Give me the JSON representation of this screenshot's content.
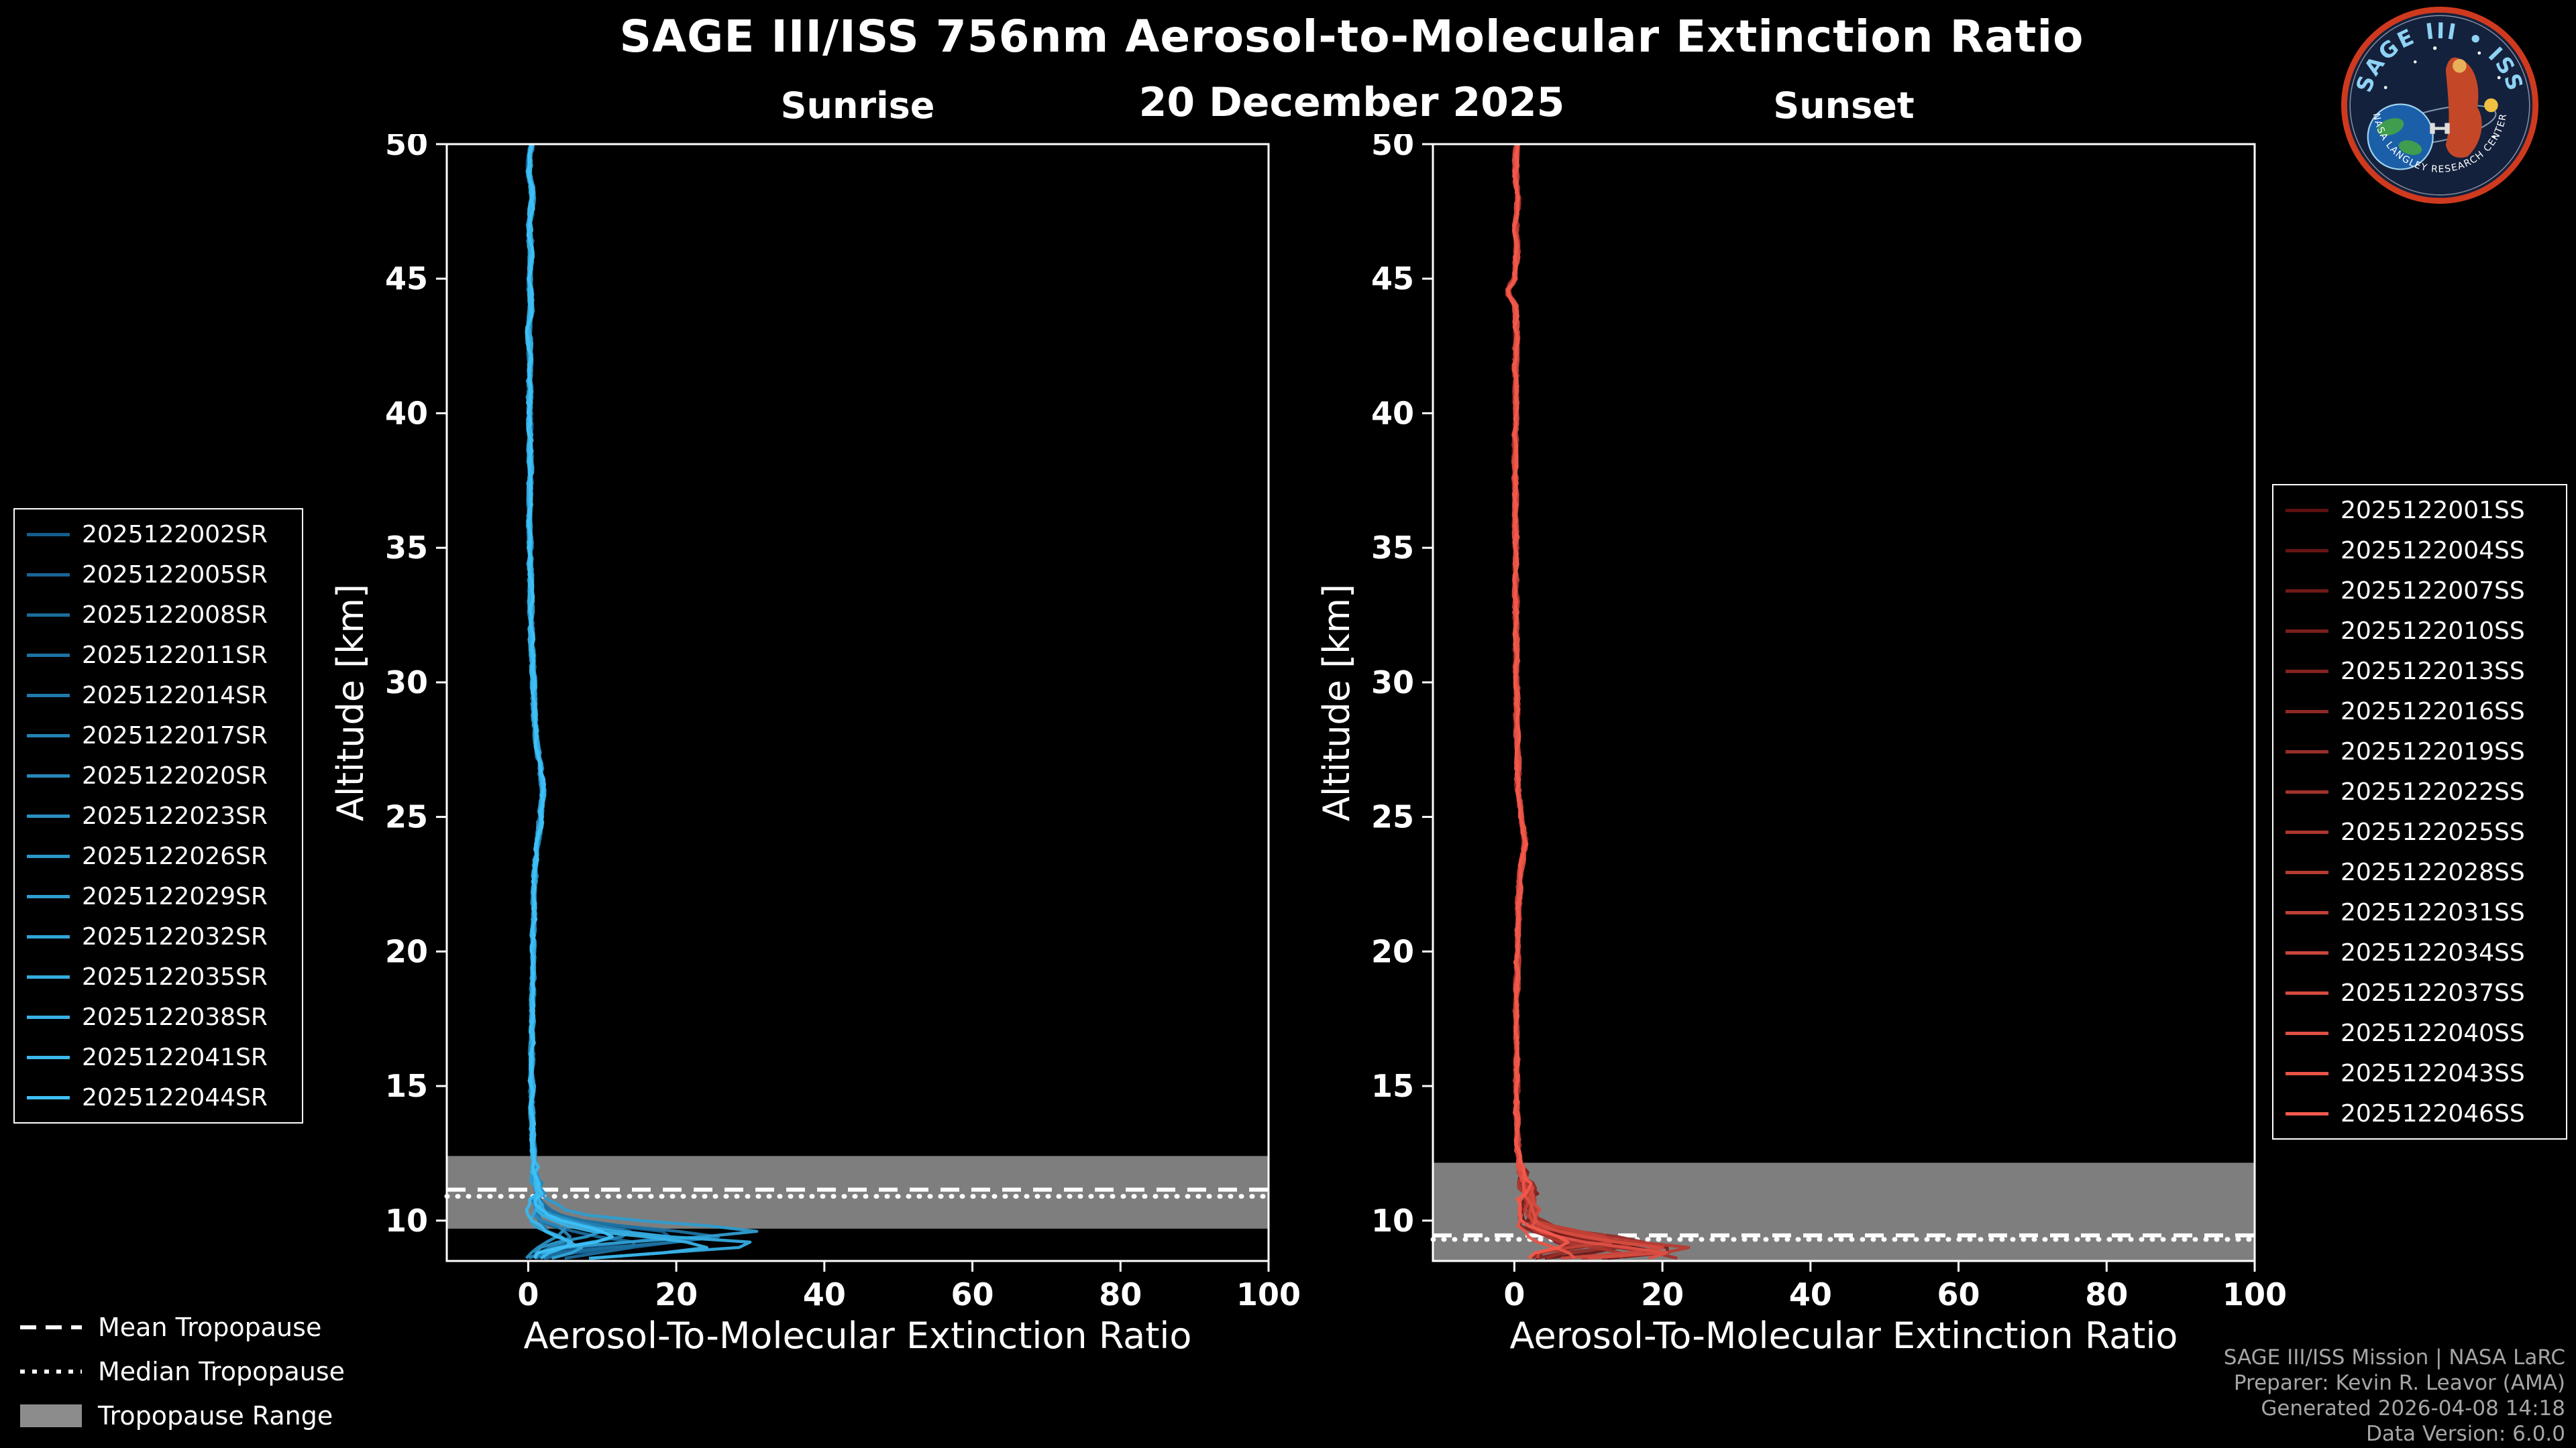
{
  "logo": {
    "title": "SAGE III • ISS",
    "arc_text": "NASA LANGLEY RESEARCH CENTER"
  },
  "footer": {
    "lines": [
      "SAGE III/ISS Mission | NASA LaRC",
      "Preparer: Kevin R. Leavor (AMA)",
      "Generated 2026-04-08 14:18",
      "Data Version: 6.0.0"
    ]
  },
  "chart_data": {
    "type": "line",
    "title": "SAGE III/ISS 756nm Aerosol-to-Molecular Extinction Ratio",
    "subtitle": "20 December 2025",
    "tropopause_legend": [
      {
        "style": "dashed",
        "label": "Mean Tropopause"
      },
      {
        "style": "dotted",
        "label": "Median Tropopause"
      },
      {
        "style": "band",
        "label": "Tropopause Range"
      }
    ],
    "band_color": "#8c8c8c",
    "panels": [
      {
        "title": "Sunrise",
        "xlabel": "Aerosol-To-Molecular Extinction Ratio",
        "ylabel": "Altitude [km]",
        "xlim": [
          -11,
          100
        ],
        "ylim": [
          8.5,
          50
        ],
        "xticks": [
          0,
          20,
          40,
          60,
          80,
          100
        ],
        "yticks": [
          10,
          15,
          20,
          25,
          30,
          35,
          40,
          45,
          50
        ],
        "tropopause": {
          "mean_km": 11.15,
          "median_km": 10.9,
          "range_km": [
            9.7,
            12.4
          ]
        },
        "series": [
          {
            "label": "2025122002SR",
            "color": "#155d8d"
          },
          {
            "label": "2025122005SR",
            "color": "#186494"
          },
          {
            "label": "2025122008SR",
            "color": "#1b6b9c"
          },
          {
            "label": "2025122011SR",
            "color": "#1e72a3"
          },
          {
            "label": "2025122014SR",
            "color": "#2179ab"
          },
          {
            "label": "2025122017SR",
            "color": "#2480b2"
          },
          {
            "label": "2025122020SR",
            "color": "#2787ba"
          },
          {
            "label": "2025122023SR",
            "color": "#2a8fc1"
          },
          {
            "label": "2025122026SR",
            "color": "#2c96c8"
          },
          {
            "label": "2025122029SR",
            "color": "#2f9dd0"
          },
          {
            "label": "2025122032SR",
            "color": "#32a4d7"
          },
          {
            "label": "2025122035SR",
            "color": "#35abdf"
          },
          {
            "label": "2025122038SR",
            "color": "#38b2e6"
          },
          {
            "label": "2025122041SR",
            "color": "#3bb9ee"
          },
          {
            "label": "2025122044SR",
            "color": "#3ec0f5"
          }
        ],
        "base_profile": [
          [
            50,
            0.5
          ],
          [
            49,
            0.1
          ],
          [
            48,
            0.6
          ],
          [
            47,
            0.1
          ],
          [
            46,
            0.4
          ],
          [
            45,
            0.2
          ],
          [
            44,
            0.4
          ],
          [
            43,
            0.1
          ],
          [
            42,
            0.3
          ],
          [
            41,
            0.2
          ],
          [
            40,
            0.2
          ],
          [
            38,
            0.3
          ],
          [
            36,
            0.2
          ],
          [
            34,
            0.3
          ],
          [
            32,
            0.4
          ],
          [
            30,
            0.7
          ],
          [
            28,
            1.0
          ],
          [
            27,
            1.6
          ],
          [
            26,
            2.0
          ],
          [
            25,
            1.7
          ],
          [
            24,
            1.2
          ],
          [
            23,
            0.9
          ],
          [
            22,
            0.8
          ],
          [
            20,
            0.7
          ],
          [
            18,
            0.6
          ],
          [
            16,
            0.5
          ],
          [
            14,
            0.5
          ],
          [
            13,
            0.6
          ],
          [
            12.3,
            0.8
          ],
          [
            11.5,
            1.0
          ],
          [
            11,
            1.3
          ],
          [
            10.6,
            1.8
          ],
          [
            10.2,
            3.5
          ],
          [
            9.9,
            8.0
          ],
          [
            9.6,
            18.0
          ],
          [
            9.35,
            27.0
          ],
          [
            9.1,
            20.0
          ],
          [
            8.9,
            9.0
          ],
          [
            8.7,
            4.0
          ],
          [
            8.5,
            2.0
          ]
        ]
      },
      {
        "title": "Sunset",
        "xlabel": "Aerosol-To-Molecular Extinction Ratio",
        "ylabel": "Altitude [km]",
        "xlim": [
          -11,
          100
        ],
        "ylim": [
          8.5,
          50
        ],
        "xticks": [
          0,
          20,
          40,
          60,
          80,
          100
        ],
        "yticks": [
          10,
          15,
          20,
          25,
          30,
          35,
          40,
          45,
          50
        ],
        "tropopause": {
          "mean_km": 9.45,
          "median_km": 9.3,
          "range_km": [
            8.5,
            12.15
          ]
        },
        "series": [
          {
            "label": "2025122001SS",
            "color": "#5c1010"
          },
          {
            "label": "2025122004SS",
            "color": "#661514"
          },
          {
            "label": "2025122007SS",
            "color": "#701a18"
          },
          {
            "label": "2025122010SS",
            "color": "#7a1f1c"
          },
          {
            "label": "2025122013SS",
            "color": "#842320"
          },
          {
            "label": "2025122016SS",
            "color": "#8e2824"
          },
          {
            "label": "2025122019SS",
            "color": "#982d28"
          },
          {
            "label": "2025122022SS",
            "color": "#a2322c"
          },
          {
            "label": "2025122025SS",
            "color": "#ac372f"
          },
          {
            "label": "2025122028SS",
            "color": "#b63c33"
          },
          {
            "label": "2025122031SS",
            "color": "#c04137"
          },
          {
            "label": "2025122034SS",
            "color": "#ca463b"
          },
          {
            "label": "2025122037SS",
            "color": "#d44b3f"
          },
          {
            "label": "2025122040SS",
            "color": "#de4f43"
          },
          {
            "label": "2025122043SS",
            "color": "#e85447"
          },
          {
            "label": "2025122046SS",
            "color": "#f2594b"
          }
        ],
        "base_profile": [
          [
            50,
            0.4
          ],
          [
            49,
            0.1
          ],
          [
            48,
            0.5
          ],
          [
            47,
            0.2
          ],
          [
            46,
            0.4
          ],
          [
            45,
            0.0
          ],
          [
            44.5,
            -0.9
          ],
          [
            44,
            0.1
          ],
          [
            43,
            0.3
          ],
          [
            42,
            0.2
          ],
          [
            40,
            0.2
          ],
          [
            38,
            0.1
          ],
          [
            36,
            0.2
          ],
          [
            34,
            0.2
          ],
          [
            32,
            0.2
          ],
          [
            30,
            0.3
          ],
          [
            28,
            0.4
          ],
          [
            26,
            0.5
          ],
          [
            24.5,
            1.2
          ],
          [
            24,
            1.5
          ],
          [
            23,
            0.8
          ],
          [
            22,
            0.6
          ],
          [
            20,
            0.4
          ],
          [
            18,
            0.3
          ],
          [
            16,
            0.3
          ],
          [
            14,
            0.3
          ],
          [
            12.5,
            0.5
          ],
          [
            11.5,
            1.2
          ],
          [
            11,
            2.2
          ],
          [
            10.5,
            2.6
          ],
          [
            10,
            2.2
          ],
          [
            9.7,
            4.0
          ],
          [
            9.4,
            9.0
          ],
          [
            9.1,
            16.0
          ],
          [
            8.9,
            21.0
          ],
          [
            8.7,
            13.0
          ],
          [
            8.5,
            5.0
          ]
        ]
      }
    ]
  }
}
